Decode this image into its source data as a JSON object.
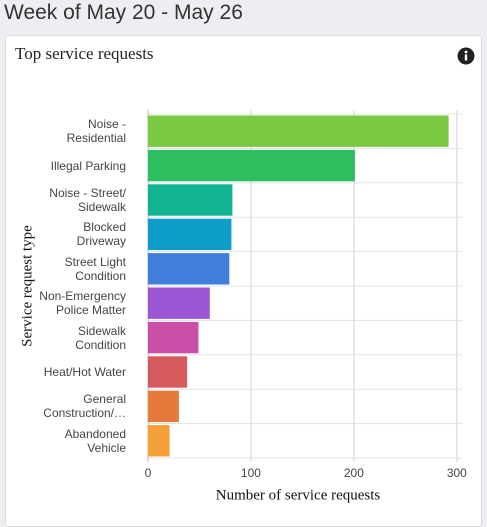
{
  "header": {
    "title": "Week of May 20 - May 26"
  },
  "chart_data": {
    "type": "barh",
    "title": "Top service requests",
    "categories": [
      "Noise -\nResidential",
      "Illegal Parking",
      "Noise - Street/\nSidewalk",
      "Blocked\nDriveway",
      "Street Light\nCondition",
      "Non-Emergency\nPolice Matter",
      "Sidewalk\nCondition",
      "Heat/Hot Water",
      "General\nConstruction/…",
      "Abandoned\nVehicle"
    ],
    "values": [
      292,
      201,
      82,
      81,
      79,
      60,
      49,
      38,
      30,
      21
    ],
    "colors": [
      "#7ac943",
      "#2dbe60",
      "#13b590",
      "#0e9dc8",
      "#3f7fdb",
      "#9b57d3",
      "#cb4fa6",
      "#d65b5e",
      "#e6793c",
      "#f5a13a"
    ],
    "xlabel": "Number of service requests",
    "ylabel": "Service request type",
    "xlim": [
      0,
      305
    ],
    "xticks": [
      0,
      100,
      200,
      300
    ],
    "grid": true
  }
}
